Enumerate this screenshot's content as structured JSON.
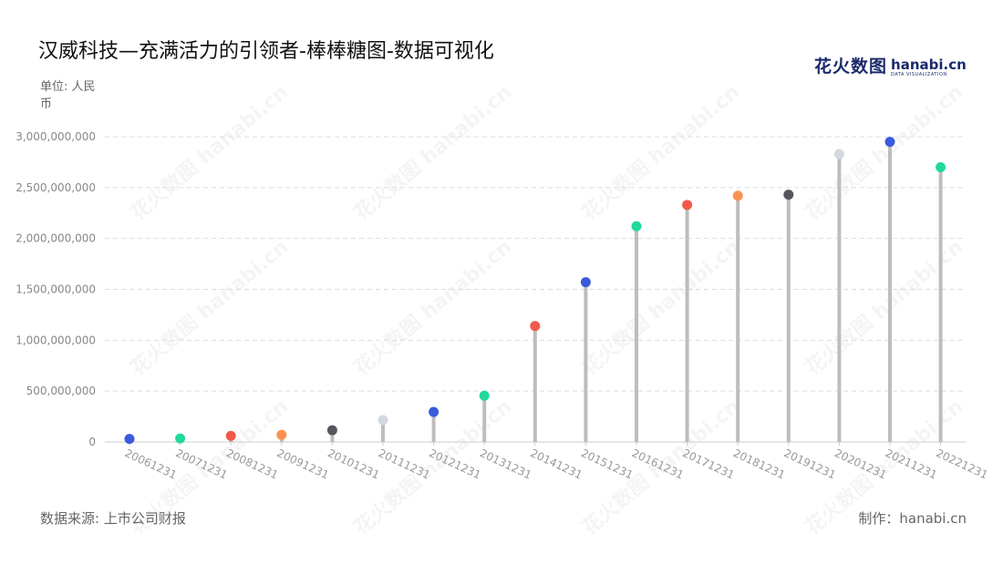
{
  "header": {
    "title": "汉威科技—充满活力的引领者-棒棒糖图-数据可视化",
    "unit": "单位: 人民币"
  },
  "logo": {
    "cn": "花火数图",
    "en": "hanabi.cn",
    "tagline": "DATA VISUALIZATION",
    "watermark_cn": "花火数图",
    "watermark_en": "hanabi.cn"
  },
  "footer": {
    "source": "数据来源: 上市公司财报",
    "credit": "制作：hanabi.cn"
  },
  "colors": {
    "stem": "#bdbdbd",
    "grid": "#dddddd",
    "tick_text": "#888888",
    "category_text": "#999999",
    "palette": [
      "#3b5bdb",
      "#20d99a",
      "#f2594b",
      "#f99252",
      "#555560",
      "#d4d8e0"
    ]
  },
  "chart_data": {
    "type": "lollipop",
    "title": "汉威科技—充满活力的引领者-棒棒糖图-数据可视化",
    "ylabel": "单位: 人民币",
    "ylim": [
      0,
      3000000000
    ],
    "yticks": [
      0,
      500000000,
      1000000000,
      1500000000,
      2000000000,
      2500000000,
      3000000000
    ],
    "ytick_labels": [
      "0",
      "500,000,000",
      "1,000,000,000",
      "1,500,000,000",
      "2,000,000,000",
      "2,500,000,000",
      "3,000,000,000"
    ],
    "grid": true,
    "categories": [
      "20061231",
      "20071231",
      "20081231",
      "20091231",
      "20101231",
      "20111231",
      "20121231",
      "20131231",
      "20141231",
      "20151231",
      "20161231",
      "20171231",
      "20181231",
      "20191231",
      "20201231",
      "20211231",
      "20221231"
    ],
    "values": [
      30000000,
      35000000,
      60000000,
      70000000,
      115000000,
      215000000,
      295000000,
      455000000,
      1140000000,
      1570000000,
      2120000000,
      2330000000,
      2420000000,
      2430000000,
      2830000000,
      2950000000,
      2700000000
    ],
    "point_colors": [
      "#3b5bdb",
      "#20d99a",
      "#f2594b",
      "#f99252",
      "#555560",
      "#d4d8e0",
      "#3b5bdb",
      "#20d99a",
      "#f2594b",
      "#3b5bdb",
      "#20d99a",
      "#f2594b",
      "#f99252",
      "#555560",
      "#d4d8e0",
      "#3b5bdb",
      "#20d99a"
    ]
  }
}
